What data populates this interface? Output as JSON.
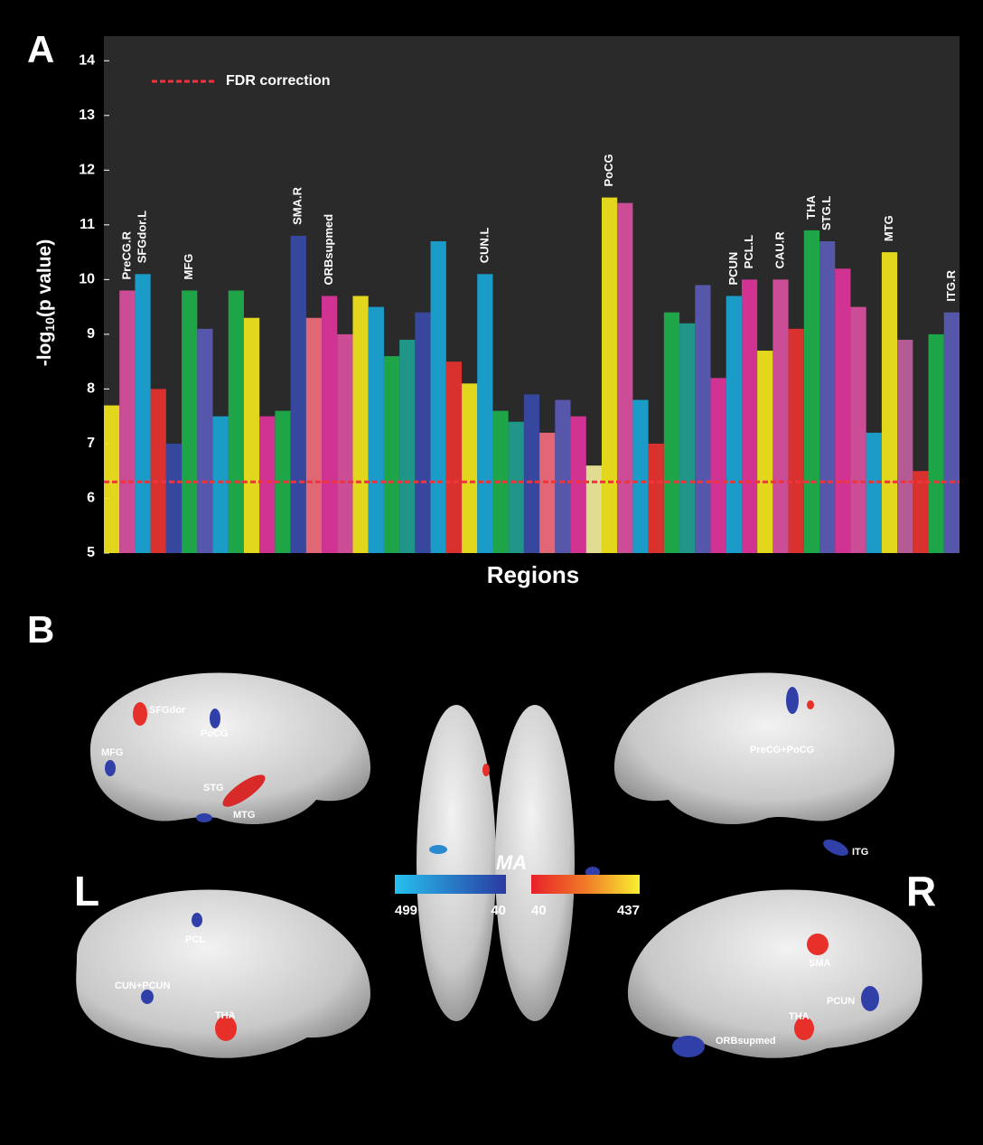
{
  "panel_labels": [
    "A",
    "B"
  ],
  "chart_data": {
    "type": "bar",
    "ylabel": {
      "text": "-log",
      "subscript": "10",
      "rest": "(p value)"
    },
    "xlabel": "Regions",
    "ylim": [
      5,
      14.45
    ],
    "yticks": [
      5,
      6,
      7,
      8,
      9,
      10,
      11,
      12,
      13,
      14
    ],
    "threshold": {
      "value": 6.3,
      "label": "FDR correction",
      "color": "#f0343c"
    },
    "categories": [
      null,
      "PreCG.R",
      "SFGdor.L",
      null,
      null,
      "MFG",
      null,
      null,
      null,
      null,
      null,
      null,
      "SMA.R",
      null,
      "ORBsupmed",
      null,
      null,
      null,
      null,
      null,
      null,
      null,
      null,
      null,
      "CUN.L",
      null,
      null,
      null,
      null,
      null,
      null,
      null,
      "PoCG",
      null,
      null,
      null,
      null,
      null,
      null,
      null,
      "PCUN",
      "PCL.L",
      null,
      "CAU.R",
      null,
      "THA",
      "STG.L",
      null,
      null,
      null,
      "MTG",
      null,
      null,
      null,
      "ITG.R"
    ],
    "values": [
      7.7,
      9.8,
      10.1,
      8.0,
      7.0,
      9.8,
      9.1,
      7.5,
      9.8,
      9.3,
      7.5,
      7.6,
      10.8,
      9.3,
      9.7,
      9.0,
      9.7,
      9.5,
      8.6,
      8.9,
      9.4,
      10.7,
      8.5,
      8.1,
      10.1,
      7.6,
      7.4,
      7.9,
      7.2,
      7.8,
      7.5,
      6.6,
      11.5,
      11.4,
      7.8,
      7.0,
      9.4,
      9.2,
      9.9,
      8.2,
      9.7,
      10.0,
      8.7,
      10.0,
      9.1,
      10.9,
      10.7,
      10.2,
      9.5,
      7.2,
      10.5,
      8.9,
      6.5,
      9.0,
      9.4
    ],
    "colors": [
      "#f2e61c",
      "#d9509e",
      "#1aa6d6",
      "#e8332f",
      "#3a4aa8",
      "#1db04b",
      "#5a5ab5",
      "#1aa6d6",
      "#1db04b",
      "#f2e61c",
      "#e0349c",
      "#1db04b",
      "#3a4aa8",
      "#f06c7a",
      "#e0349c",
      "#d9509e",
      "#f2e61c",
      "#1aa6d6",
      "#1db04b",
      "#20a090",
      "#3a4aa8",
      "#1aa6d6",
      "#e8332f",
      "#f2e61c",
      "#1aa6d6",
      "#1db04b",
      "#20a090",
      "#3a4aa8",
      "#f06c7a",
      "#5a5ab5",
      "#e0349c",
      "#f0ec9a",
      "#f2e61c",
      "#d9509e",
      "#1aa6d6",
      "#e8332f",
      "#1db04b",
      "#20a090",
      "#5a5ab5",
      "#e0349c",
      "#1aa6d6",
      "#e0349c",
      "#f2e61c",
      "#d9509e",
      "#e8332f",
      "#1db04b",
      "#5a5ab5",
      "#e0349c",
      "#d9509e",
      "#1aa6d6",
      "#f2e61c",
      "#c060a0",
      "#e8332f",
      "#1db04b",
      "#5a5ab5"
    ]
  },
  "brain": {
    "side_labels": [
      "L",
      "R"
    ],
    "left_lateral": [
      "SFGdor",
      "PoCG",
      "MFG",
      "STG",
      "MTG"
    ],
    "right_lateral": [
      "PreCG+PoCG",
      "ITG"
    ],
    "left_medial": [
      "PCL",
      "CUN+PCUN",
      "THA"
    ],
    "right_medial": [
      "SMA",
      "PCUN",
      "THA",
      "ORBsupmed"
    ],
    "colorbar": {
      "title": "MA",
      "negative": [
        499,
        40
      ],
      "positive": [
        40,
        437
      ]
    }
  }
}
